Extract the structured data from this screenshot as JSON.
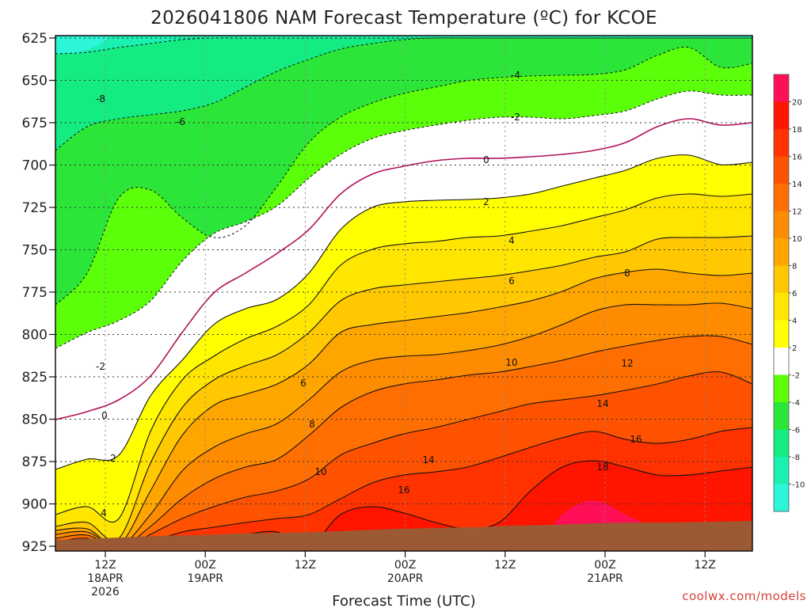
{
  "chart_data": {
    "type": "heatmap",
    "title": "2026041806 NAM Forecast Temperature (ºC) for KCOE",
    "xlabel": "Forecast Time (UTC)",
    "ylabel": "",
    "credit": "coolwx.com/models",
    "y_axis": {
      "ticks": [
        "625",
        "650",
        "675",
        "700",
        "725",
        "750",
        "775",
        "800",
        "825",
        "850",
        "875",
        "900",
        "925"
      ],
      "range": [
        625,
        925
      ],
      "inverted": true
    },
    "x_axis": {
      "ticks": [
        {
          "line1": "12Z",
          "line2": "18APR",
          "line3": "2026"
        },
        {
          "line1": "00Z",
          "line2": "19APR",
          "line3": ""
        },
        {
          "line1": "12Z",
          "line2": "",
          "line3": ""
        },
        {
          "line1": "00Z",
          "line2": "20APR",
          "line3": ""
        },
        {
          "line1": "12Z",
          "line2": "",
          "line3": ""
        },
        {
          "line1": "00Z",
          "line2": "21APR",
          "line3": ""
        },
        {
          "line1": "12Z",
          "line2": "",
          "line3": ""
        }
      ]
    },
    "grid": true,
    "colorbar": {
      "position": "right",
      "labels": [
        "20",
        "18",
        "16",
        "14",
        "12",
        "10",
        "8",
        "6",
        "4",
        "2",
        "-2",
        "-4",
        "-6",
        "-8",
        "-10"
      ],
      "colors": {
        "lt_-10": "#2cf5d8",
        "-10_-8": "#1af0b0",
        "-8_-6": "#14ec82",
        "-6_-4": "#2be639",
        "-4_-2": "#5cff0a",
        "-2_2": "#ffffff",
        "2_4": "#ffff00",
        "4_6": "#ffe600",
        "6_8": "#ffc800",
        "8_10": "#ffa500",
        "10_12": "#ff8c00",
        "12_14": "#ff6e00",
        "14_16": "#ff5200",
        "16_18": "#ff3200",
        "18_20": "#ff1400",
        "gt_20": "#ff0f55"
      }
    },
    "contour_labels": [
      {
        "text": "-8",
        "style": "dashed"
      },
      {
        "text": "-6",
        "style": "dashed"
      },
      {
        "text": "-4",
        "style": "dashed"
      },
      {
        "text": "-2",
        "style": "dashed"
      },
      {
        "text": "-2",
        "style": "dashed"
      },
      {
        "text": "0",
        "style": "zero"
      },
      {
        "text": "0",
        "style": "zero"
      },
      {
        "text": "2",
        "style": "solid"
      },
      {
        "text": "2",
        "style": "solid"
      },
      {
        "text": "4",
        "style": "solid"
      },
      {
        "text": "4",
        "style": "solid"
      },
      {
        "text": "6",
        "style": "solid"
      },
      {
        "text": "6",
        "style": "solid"
      },
      {
        "text": "8",
        "style": "solid"
      },
      {
        "text": "8",
        "style": "solid"
      },
      {
        "text": "10",
        "style": "solid"
      },
      {
        "text": "10",
        "style": "solid"
      },
      {
        "text": "12",
        "style": "solid"
      },
      {
        "text": "14",
        "style": "solid"
      },
      {
        "text": "14",
        "style": "solid"
      },
      {
        "text": "16",
        "style": "solid"
      },
      {
        "text": "16",
        "style": "solid"
      },
      {
        "text": "18",
        "style": "solid"
      }
    ],
    "terrain_color": "#9c5a34"
  }
}
